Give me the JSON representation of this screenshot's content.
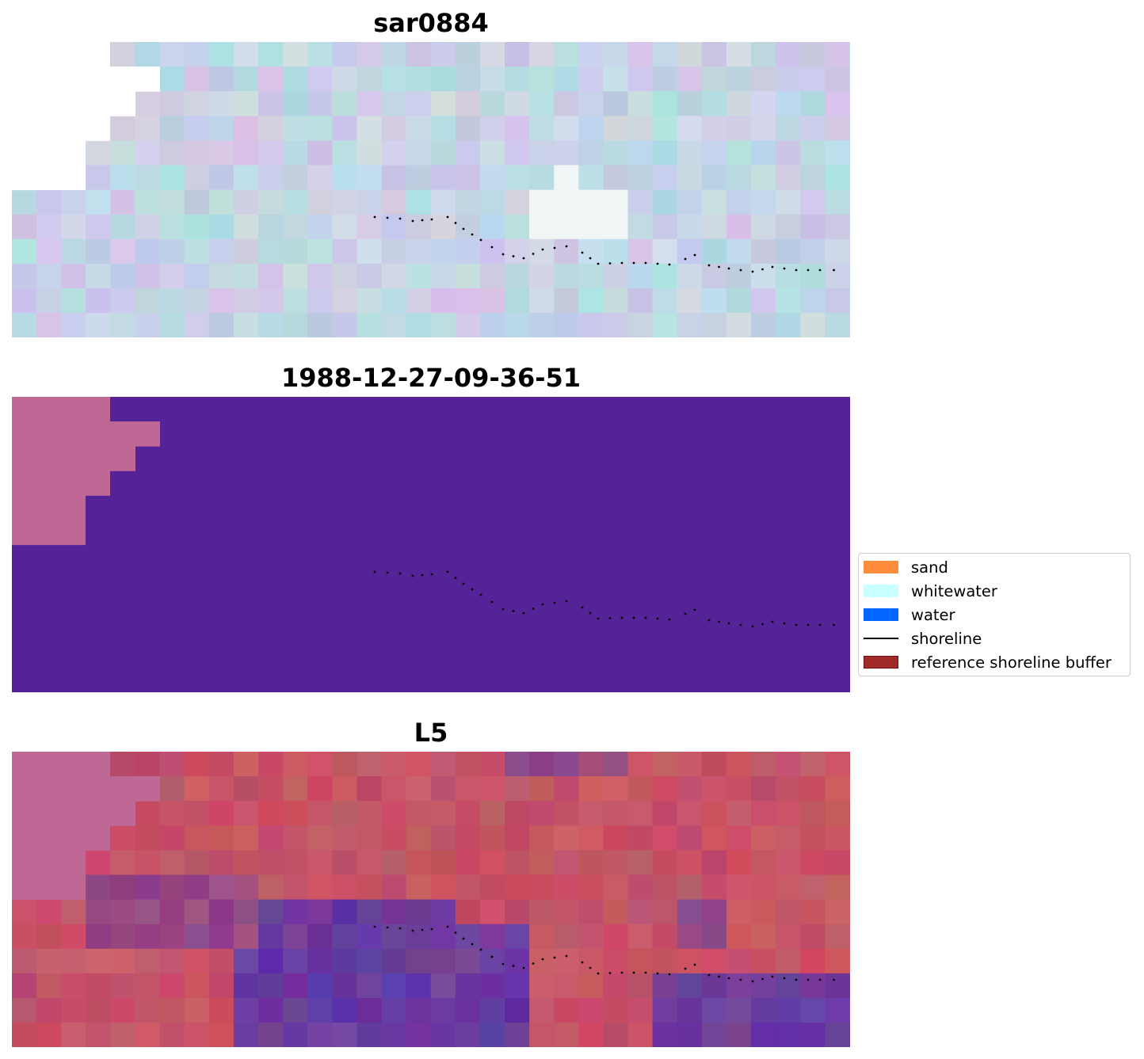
{
  "panels": [
    {
      "title": "sar0884",
      "kind": "sar-composite"
    },
    {
      "title": "1988-12-27-09-36-51",
      "kind": "classification"
    },
    {
      "title": "L5",
      "kind": "mndwi-index"
    }
  ],
  "legend": {
    "items": [
      {
        "label": "sand",
        "color": "#ff8c3a",
        "type": "patch"
      },
      {
        "label": "whitewater",
        "color": "#c8ffff",
        "type": "patch"
      },
      {
        "label": "water",
        "color": "#0066ff",
        "type": "patch"
      },
      {
        "label": "shoreline",
        "color": "#000000",
        "type": "line"
      },
      {
        "label": "reference shoreline buffer",
        "color": "#a02a2a",
        "type": "patch",
        "edge": "#7a1010"
      }
    ]
  },
  "colors": {
    "nodata": "#bf6896",
    "classified_water": "#542397",
    "sar_base": "#b9d2e2",
    "index_high": "#c81e50",
    "index_low": "#5a1496"
  }
}
